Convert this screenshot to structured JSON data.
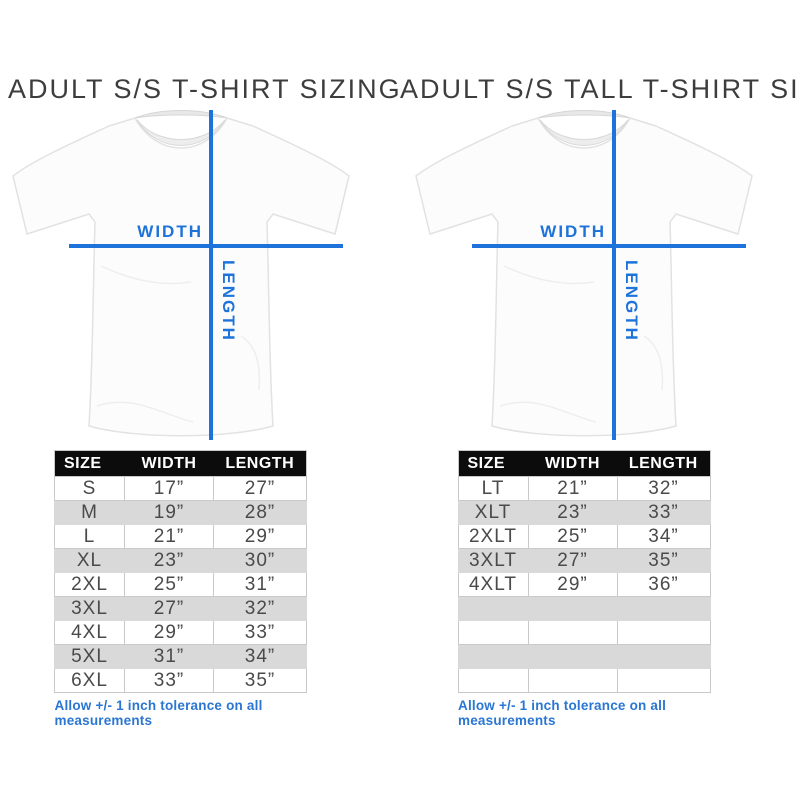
{
  "colors": {
    "accent_blue": "#1d73d9",
    "note_blue": "#2a76d2",
    "table_header_bg": "#0c0c0c",
    "row_alt_gray": "#d9d9d9",
    "title_color": "#3d3d3d",
    "cell_text": "#4a4a4a",
    "border_gray": "#c9c9c9"
  },
  "panels": [
    {
      "title": "ADULT S/S T-SHIRT SIZING",
      "diagram": {
        "width_label": "WIDTH",
        "length_label": "LENGTH"
      },
      "table": {
        "headers": [
          "SIZE",
          "WIDTH",
          "LENGTH"
        ],
        "rows": [
          [
            "S",
            "17”",
            "27”"
          ],
          [
            "M",
            "19”",
            "28”"
          ],
          [
            "L",
            "21”",
            "29”"
          ],
          [
            "XL",
            "23”",
            "30”"
          ],
          [
            "2XL",
            "25”",
            "31”"
          ],
          [
            "3XL",
            "27”",
            "32”"
          ],
          [
            "4XL",
            "29”",
            "33”"
          ],
          [
            "5XL",
            "31”",
            "34”"
          ],
          [
            "6XL",
            "33”",
            "35”"
          ]
        ],
        "empty_rows": 0
      },
      "note": "Allow +/- 1 inch tolerance on all measurements"
    },
    {
      "title": "ADULT S/S TALL T-SHIRT SIZING",
      "diagram": {
        "width_label": "WIDTH",
        "length_label": "LENGTH"
      },
      "table": {
        "headers": [
          "SIZE",
          "WIDTH",
          "LENGTH"
        ],
        "rows": [
          [
            "LT",
            "21”",
            "32”"
          ],
          [
            "XLT",
            "23”",
            "33”"
          ],
          [
            "2XLT",
            "25”",
            "34”"
          ],
          [
            "3XLT",
            "27”",
            "35”"
          ],
          [
            "4XLT",
            "29”",
            "36”"
          ]
        ],
        "empty_rows": 4
      },
      "note": "Allow +/- 1 inch tolerance on all measurements"
    }
  ]
}
